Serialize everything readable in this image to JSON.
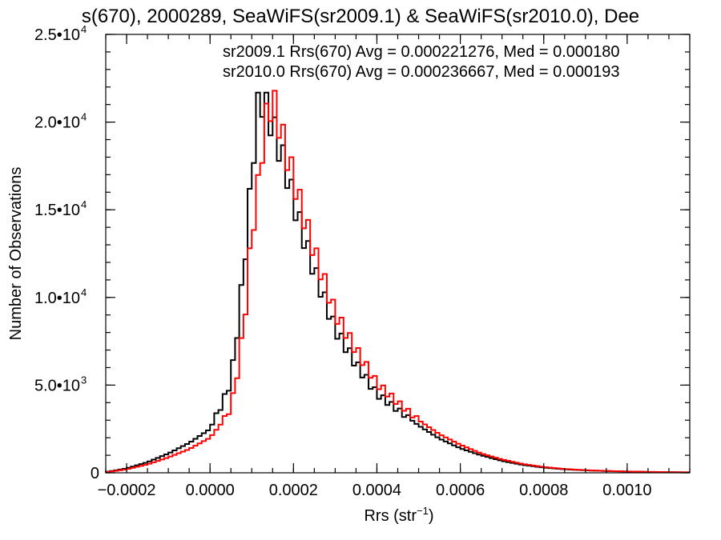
{
  "chart_data": {
    "type": "histogram-step",
    "title": "s(670), 2000289, SeaWiFS(sr2009.1) & SeaWiFS(sr2010.0), Dee",
    "xlabel": "Rrs (str",
    "xlabel_sup": "−1",
    "xlabel_close": ")",
    "ylabel": "Number of Observations",
    "xlim": [
      -0.00025,
      0.00115
    ],
    "ylim": [
      0,
      25000
    ],
    "x_ticks": [
      {
        "value": -0.0002,
        "label": "−0.0002"
      },
      {
        "value": 0.0,
        "label": "0.0000"
      },
      {
        "value": 0.0002,
        "label": "0.0002"
      },
      {
        "value": 0.0004,
        "label": "0.0004"
      },
      {
        "value": 0.0006,
        "label": "0.0006"
      },
      {
        "value": 0.0008,
        "label": "0.0008"
      },
      {
        "value": 0.001,
        "label": "0.0010"
      }
    ],
    "y_ticks": [
      {
        "value": 0,
        "base": "0",
        "exp": ""
      },
      {
        "value": 5000,
        "base": "5.0•10",
        "exp": "3"
      },
      {
        "value": 10000,
        "base": "1.0•10",
        "exp": "4"
      },
      {
        "value": 15000,
        "base": "1.5•10",
        "exp": "4"
      },
      {
        "value": 20000,
        "base": "2.0•10",
        "exp": "4"
      },
      {
        "value": 25000,
        "base": "2.5•10",
        "exp": "4"
      }
    ],
    "bin_width": 1e-05,
    "series": [
      {
        "name": "sr2009.1",
        "color": "#000000",
        "legend": "sr2009.1 Rrs(670) Avg = 0.000221276, Med = 0.000180",
        "points": [
          [
            -0.00025,
            40
          ],
          [
            -0.0002,
            250
          ],
          [
            -0.00015,
            600
          ],
          [
            -0.0001,
            1100
          ],
          [
            -5e-05,
            1700
          ],
          [
            0.0,
            2500
          ],
          [
            3e-05,
            4000
          ],
          [
            5e-05,
            5200
          ],
          [
            7e-05,
            9000
          ],
          [
            9e-05,
            14000
          ],
          [
            0.0001,
            17000
          ],
          [
            0.00011,
            20000
          ],
          [
            0.00012,
            21500
          ],
          [
            0.00013,
            21000
          ],
          [
            0.00014,
            20500
          ],
          [
            0.00015,
            19800
          ],
          [
            0.00016,
            19000
          ],
          [
            0.00018,
            17500
          ],
          [
            0.0002,
            15500
          ],
          [
            0.00022,
            13800
          ],
          [
            0.00025,
            11500
          ],
          [
            0.0003,
            8200
          ],
          [
            0.00035,
            6200
          ],
          [
            0.0004,
            4500
          ],
          [
            0.00045,
            3600
          ],
          [
            0.0005,
            2700
          ],
          [
            0.00055,
            1950
          ],
          [
            0.0006,
            1400
          ],
          [
            0.00065,
            1000
          ],
          [
            0.0007,
            680
          ],
          [
            0.00075,
            450
          ],
          [
            0.0008,
            300
          ],
          [
            0.00085,
            200
          ],
          [
            0.0009,
            140
          ],
          [
            0.00095,
            100
          ],
          [
            0.001,
            70
          ],
          [
            0.00105,
            50
          ],
          [
            0.0011,
            35
          ],
          [
            0.00115,
            25
          ]
        ]
      },
      {
        "name": "sr2010.0",
        "color": "#ff0000",
        "legend": "sr2010.0 Rrs(670) Avg = 0.000236667, Med = 0.000193",
        "points": [
          [
            -0.00025,
            30
          ],
          [
            -0.0002,
            200
          ],
          [
            -0.00015,
            480
          ],
          [
            -0.0001,
            880
          ],
          [
            -5e-05,
            1350
          ],
          [
            0.0,
            2000
          ],
          [
            3e-05,
            2900
          ],
          [
            5e-05,
            3700
          ],
          [
            7e-05,
            6300
          ],
          [
            9e-05,
            10500
          ],
          [
            0.0001,
            14000
          ],
          [
            0.00011,
            15000
          ],
          [
            0.00012,
            17500
          ],
          [
            0.00013,
            19500
          ],
          [
            0.00014,
            20800
          ],
          [
            0.00015,
            21200
          ],
          [
            0.00016,
            20500
          ],
          [
            0.00018,
            18500
          ],
          [
            0.0002,
            16800
          ],
          [
            0.00022,
            15000
          ],
          [
            0.00025,
            12600
          ],
          [
            0.0003,
            9100
          ],
          [
            0.00035,
            7000
          ],
          [
            0.0004,
            5100
          ],
          [
            0.00045,
            4000
          ],
          [
            0.0005,
            3000
          ],
          [
            0.00055,
            2200
          ],
          [
            0.0006,
            1600
          ],
          [
            0.00065,
            1100
          ],
          [
            0.0007,
            760
          ],
          [
            0.00075,
            500
          ],
          [
            0.0008,
            330
          ],
          [
            0.00085,
            220
          ],
          [
            0.0009,
            150
          ],
          [
            0.00095,
            110
          ],
          [
            0.001,
            75
          ],
          [
            0.00105,
            55
          ],
          [
            0.0011,
            38
          ],
          [
            0.00115,
            28
          ]
        ]
      }
    ]
  }
}
